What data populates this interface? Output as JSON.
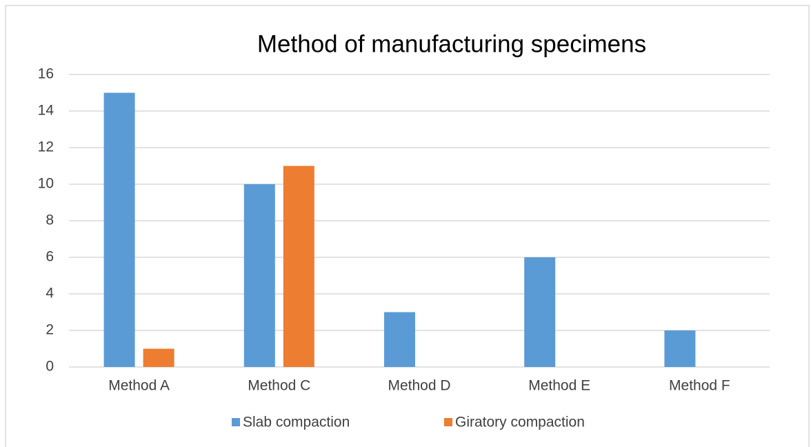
{
  "chart_data": {
    "type": "bar",
    "title": "Method of manufacturing specimens",
    "categories": [
      "Method A",
      "Method C",
      "Method D",
      "Method E",
      "Method F"
    ],
    "series": [
      {
        "name": "Slab compaction",
        "color": "#5b9bd5",
        "values": [
          15,
          10,
          3,
          6,
          2
        ]
      },
      {
        "name": "Giratory compaction",
        "color": "#ed7d31",
        "values": [
          1,
          11,
          0,
          0,
          0
        ]
      }
    ],
    "ylim": [
      0,
      16
    ],
    "yticks": [
      0,
      2,
      4,
      6,
      8,
      10,
      12,
      14,
      16
    ],
    "grid": true,
    "legend": "bottom"
  }
}
